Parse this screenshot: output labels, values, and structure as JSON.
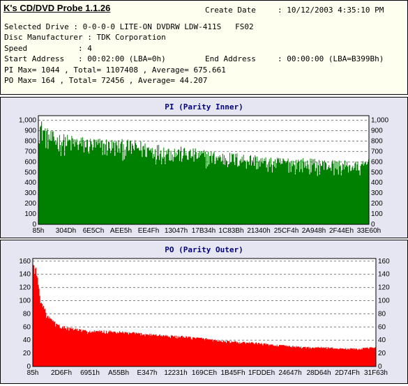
{
  "header": {
    "title": "K's CD/DVD Probe 1.1.26",
    "create_date_label": "Create Date",
    "create_date_value": ": 10/12/2003 4:35:10 PM",
    "selected_drive": "Selected Drive : 0-0-0-0 LITE-ON DVDRW LDW-411S   FS02",
    "disc_manufacturer": "Disc Manufacturer : TDK Corporation",
    "speed": "Speed           : 4",
    "start_address": "Start Address   : 00:02:00 (LBA=0h)",
    "end_address_label": "End Address",
    "end_address_value": ": 00:00:00 (LBA=B399Bh)",
    "pi_summary": "PI Max= 1044 , Total= 1107408 , Average= 675.661",
    "po_summary": "PO Max= 164 , Total= 72456 , Average= 44.207"
  },
  "colors": {
    "pi": "#008000",
    "po": "#ff0000",
    "plot_bg": "#ffffff",
    "panel_bg": "#e6e6f2",
    "title": "#000080"
  },
  "chart_data": [
    {
      "type": "area",
      "title": "PI (Parity Inner)",
      "color": "#008000",
      "grid": true,
      "ylim": [
        0,
        1044
      ],
      "yticks": [
        0,
        100,
        200,
        300,
        400,
        500,
        600,
        700,
        800,
        900,
        1000
      ],
      "ytick_labels": [
        "0",
        "100",
        "200",
        "300",
        "400",
        "500",
        "600",
        "700",
        "800",
        "900",
        "1,000"
      ],
      "xtick_labels": [
        "85h",
        "304Dh",
        "6E5Ch",
        "AEE5h",
        "EE4Fh",
        "13047h",
        "17B34h",
        "1C83Bh",
        "21340h",
        "25CF4h",
        "2A948h",
        "2F44Eh",
        "33E60h"
      ],
      "envelope": [
        [
          0.0,
          1030
        ],
        [
          0.01,
          1000
        ],
        [
          0.03,
          910
        ],
        [
          0.06,
          880
        ],
        [
          0.1,
          860
        ],
        [
          0.15,
          840
        ],
        [
          0.2,
          830
        ],
        [
          0.25,
          820
        ],
        [
          0.3,
          810
        ],
        [
          0.35,
          780
        ],
        [
          0.4,
          760
        ],
        [
          0.45,
          740
        ],
        [
          0.5,
          720
        ],
        [
          0.55,
          700
        ],
        [
          0.6,
          690
        ],
        [
          0.65,
          680
        ],
        [
          0.7,
          640
        ],
        [
          0.75,
          650
        ],
        [
          0.8,
          640
        ],
        [
          0.85,
          630
        ],
        [
          0.9,
          620
        ],
        [
          0.95,
          610
        ],
        [
          0.98,
          600
        ],
        [
          1.0,
          660
        ]
      ],
      "min_fraction": 0.12,
      "sample_count": 460
    },
    {
      "type": "area",
      "title": "PO (Parity Outer)",
      "color": "#ff0000",
      "grid": true,
      "ylim": [
        0,
        164
      ],
      "yticks": [
        0,
        20,
        40,
        60,
        80,
        100,
        120,
        140,
        160
      ],
      "ytick_labels": [
        "0",
        "20",
        "40",
        "60",
        "80",
        "100",
        "120",
        "140",
        "160"
      ],
      "xtick_labels": [
        "85h",
        "2D6Fh",
        "6951h",
        "A55Bh",
        "E347h",
        "12231h",
        "169CEh",
        "1B45Fh",
        "1FDDEh",
        "24647h",
        "28D64h",
        "2D74Fh",
        "31F63h"
      ],
      "envelope": [
        [
          0.0,
          160
        ],
        [
          0.01,
          150
        ],
        [
          0.02,
          110
        ],
        [
          0.04,
          80
        ],
        [
          0.07,
          65
        ],
        [
          0.1,
          60
        ],
        [
          0.13,
          58
        ],
        [
          0.16,
          55
        ],
        [
          0.2,
          55
        ],
        [
          0.25,
          54
        ],
        [
          0.3,
          52
        ],
        [
          0.35,
          50
        ],
        [
          0.4,
          48
        ],
        [
          0.45,
          46
        ],
        [
          0.5,
          44
        ],
        [
          0.55,
          40
        ],
        [
          0.6,
          38
        ],
        [
          0.65,
          37
        ],
        [
          0.7,
          34
        ],
        [
          0.75,
          32
        ],
        [
          0.8,
          30
        ],
        [
          0.85,
          30
        ],
        [
          0.9,
          28
        ],
        [
          0.95,
          28
        ],
        [
          1.0,
          30
        ]
      ],
      "min_fraction": 0.05,
      "sample_count": 460
    }
  ]
}
